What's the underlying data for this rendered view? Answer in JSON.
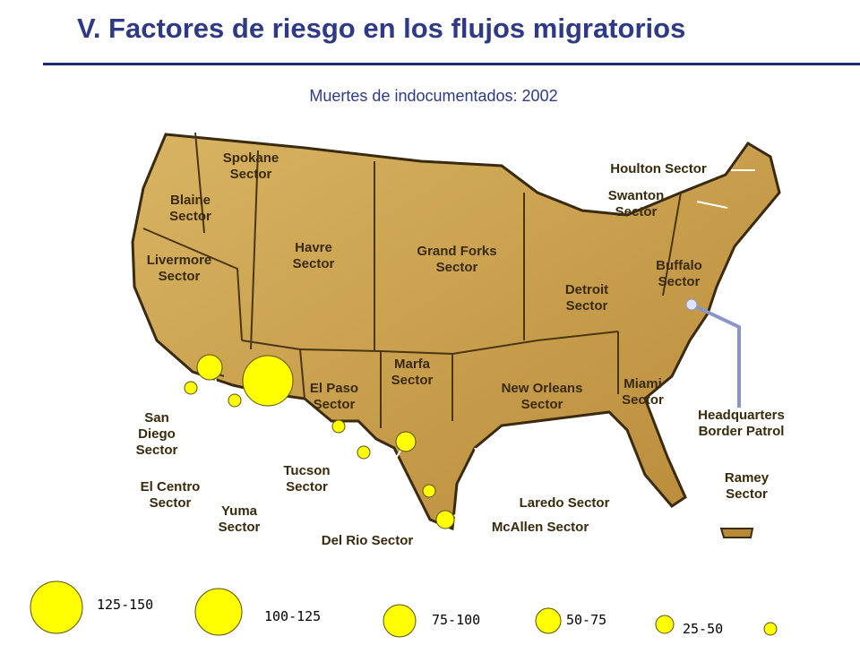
{
  "header": {
    "title": "V. Factores de riesgo en los flujos migratorios"
  },
  "map": {
    "subtitle": "Muertes de indocumentados: 2002",
    "sectors": [
      "Spokane Sector",
      "Blaine Sector",
      "Livermore Sector",
      "Havre Sector",
      "Grand Forks Sector",
      "Houlton Sector",
      "Swanton Sector",
      "Buffalo Sector",
      "Detroit Sector",
      "Marfa Sector",
      "El Paso Sector",
      "New Orleans Sector",
      "Miami Sector",
      "Headquarters Border Patrol",
      "San Diego Sector",
      "El Centro Sector",
      "Yuma Sector",
      "Tucson Sector",
      "Del Rio Sector",
      "Laredo Sector",
      "McAllen Sector",
      "Ramey Sector"
    ]
  },
  "legend": {
    "items": [
      "125-150",
      "100-125",
      "75-100",
      "50-75",
      "25-50"
    ]
  }
}
